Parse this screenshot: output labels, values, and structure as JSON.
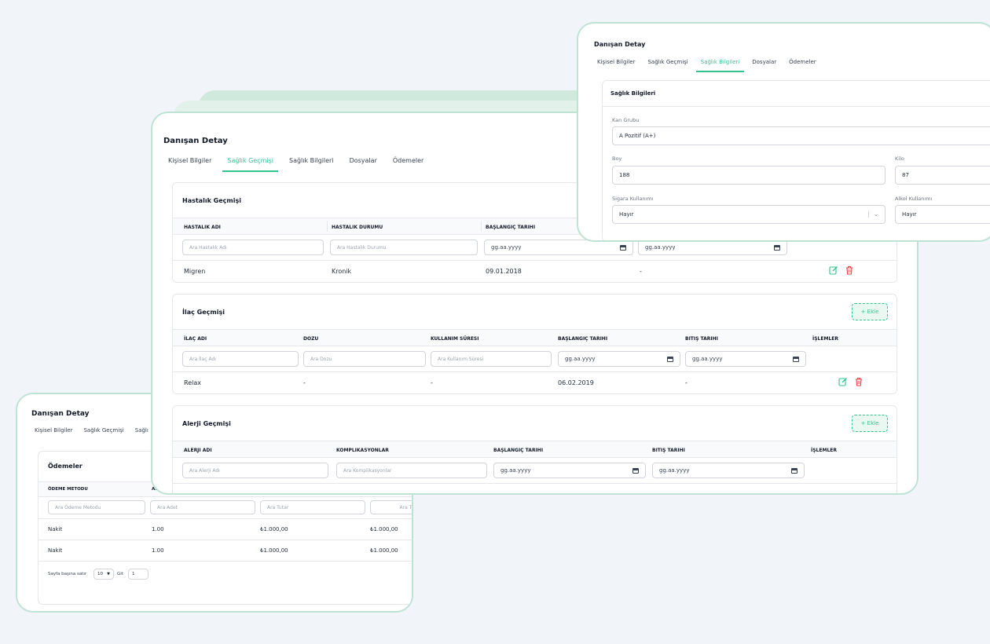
{
  "detail_title": "Danışan Detay",
  "tabs": [
    "Kişisel Bilgiler",
    "Sağlık Geçmişi",
    "Sağlık Bilgileri",
    "Dosyalar",
    "Ödemeler"
  ],
  "main": {
    "disease": {
      "title": "Hastalık Geçmişi",
      "columns": [
        "HASTALIK ADI",
        "HASTALIK DURUMU",
        "BAŞLANGIÇ TARIHI"
      ],
      "filters": [
        "Ara Hastalık Adı",
        "Ara Hastalık Durumu"
      ],
      "date_placeholder": "gg.aa.yyyy",
      "row": [
        "Migren",
        "Kronik",
        "09.01.2018",
        "-"
      ]
    },
    "medication": {
      "title": "İlaç Geçmişi",
      "add_label": "+ Ekle",
      "columns": [
        "İLAÇ ADI",
        "DOZU",
        "KULLANIM SÜRESI",
        "BAŞLANGIÇ TARIHI",
        "BITIŞ TARIHI",
        "İŞLEMLER"
      ],
      "filters": [
        "Ara İlaç Adı",
        "Ara Dozu",
        "Ara Kullanım Süresi"
      ],
      "date_placeholder": "gg.aa.yyyy",
      "row": [
        "Relax",
        "-",
        "-",
        "06.02.2019",
        "-"
      ]
    },
    "allergy": {
      "title": "Alerji Geçmişi",
      "add_label": "+ Ekle",
      "columns": [
        "ALERJI ADI",
        "KOMPLIKASYONLAR",
        "BAŞLANGIÇ TARIHI",
        "BITIŞ TARIHI",
        "İŞLEMLER"
      ],
      "filters": [
        "Ara Alerji Adı",
        "Ara Komplikasyonlar"
      ],
      "date_placeholder": "gg.aa.yyyy"
    }
  },
  "health": {
    "section_title": "Sağlık Bilgileri",
    "blood_label": "Kan Grubu",
    "blood_value": "A Pozitif (A+)",
    "height_label": "Boy",
    "height_value": "188",
    "weight_label": "Kilo",
    "weight_value": "87",
    "smoke_label": "Sigara Kullanımı",
    "smoke_value": "Hayır",
    "alcohol_label": "Alkol Kullanımı",
    "alcohol_value": "Hayır"
  },
  "payments": {
    "tabs_visible": [
      "Kişisel Bilgiler",
      "Sağlık Geçmişi",
      "Sağlı"
    ],
    "section_title": "Ödemeler",
    "columns": [
      "ÖDEME METODU",
      "AD"
    ],
    "filters": [
      "Ara Ödeme Metodu",
      "Ara Adet",
      "Ara Tutar",
      "Ara Toplam"
    ],
    "rows": [
      [
        "Nakit",
        "1.00",
        "₺1.000,00",
        "₺1.000,00"
      ],
      [
        "Nakit",
        "1.00",
        "₺1.000,00",
        "₺1.000,00"
      ]
    ],
    "rows_per_page_label": "Sayfa başına satır",
    "rows_per_page_value": "10",
    "goto_label": "Git",
    "goto_value": "1"
  },
  "colors": {
    "accent": "#34c38f",
    "danger": "#ef4444",
    "card_border": "#bfe3d3",
    "background": "#f1f5f9"
  },
  "icons": [
    "edit-icon",
    "trash-icon",
    "calendar-icon",
    "chevron-down-icon"
  ]
}
